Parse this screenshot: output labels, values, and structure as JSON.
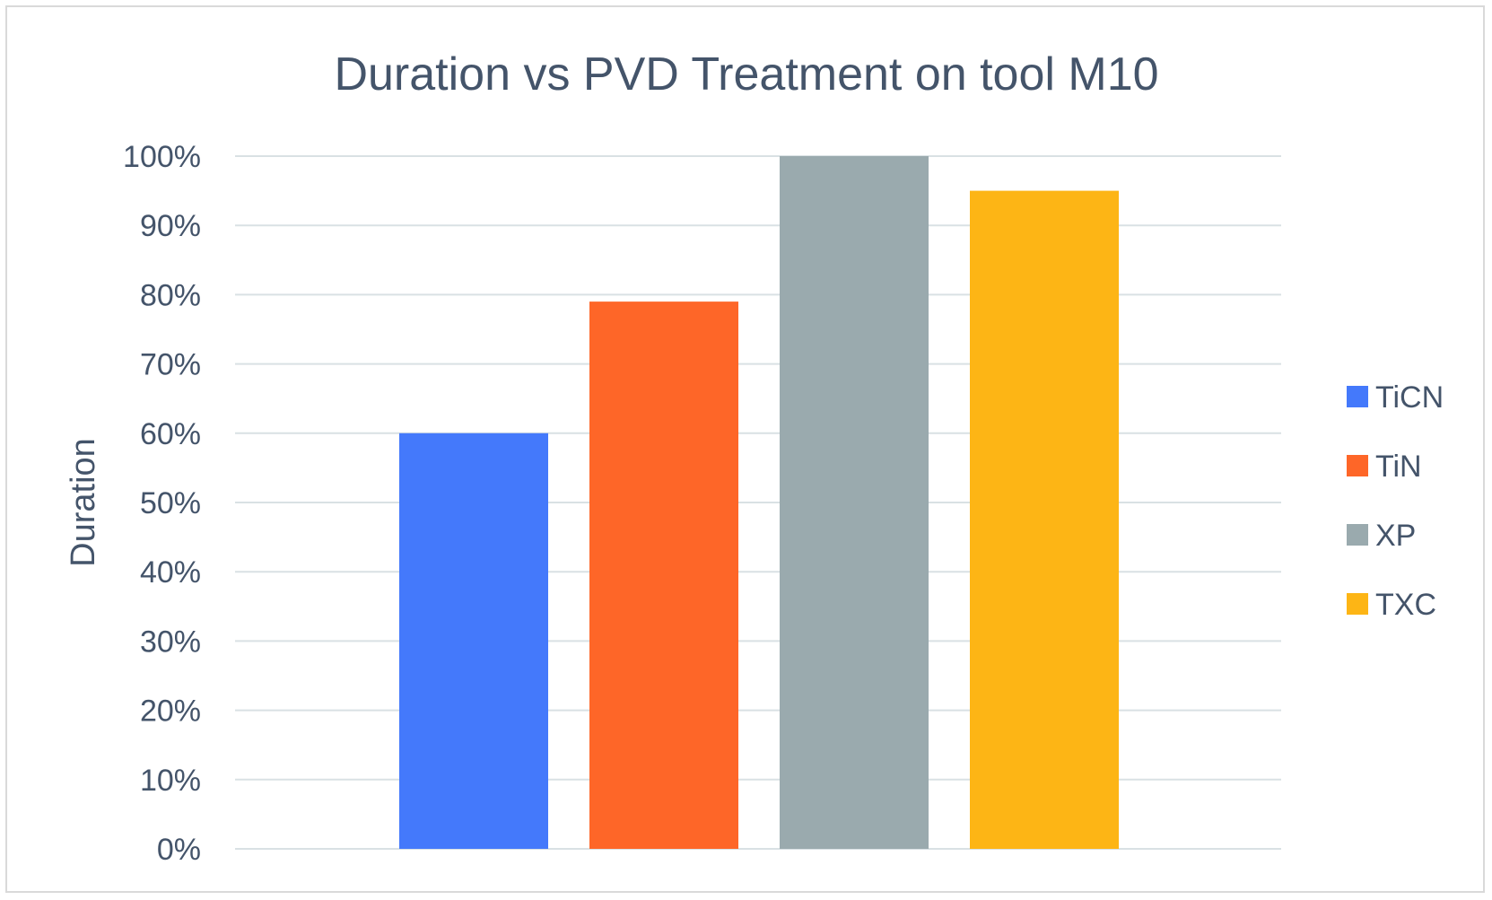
{
  "chart_data": {
    "type": "bar",
    "title": "Duration vs PVD Treatment on tool M10",
    "xlabel": "",
    "ylabel": "Duration",
    "ylim": [
      0,
      100
    ],
    "ytick_step": 10,
    "yticks": [
      "0%",
      "10%",
      "20%",
      "30%",
      "40%",
      "50%",
      "60%",
      "70%",
      "80%",
      "90%",
      "100%"
    ],
    "grid": true,
    "legend_position": "right",
    "series": [
      {
        "name": "TiCN",
        "value": 60,
        "color": "#4479fb"
      },
      {
        "name": "TiN",
        "value": 79,
        "color": "#fe6628"
      },
      {
        "name": "XP",
        "value": 100,
        "color": "#9aaaae"
      },
      {
        "name": "TXC",
        "value": 95,
        "color": "#fdb515"
      }
    ]
  },
  "colors": {
    "text": "#44546a",
    "gridline": "#d9e1e4",
    "frame": "#d9d9d9"
  }
}
